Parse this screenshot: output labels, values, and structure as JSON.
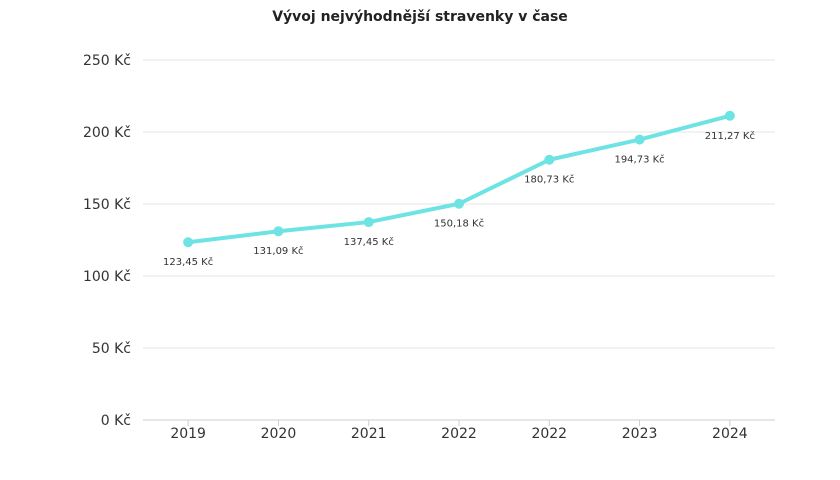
{
  "chart_data": {
    "type": "line",
    "title": "Vývoj nejvýhodnější stravenky v čase",
    "categories": [
      "2019",
      "2020",
      "2021",
      "2022",
      "2022",
      "2023",
      "2024"
    ],
    "series": [
      {
        "values": [
          123.45,
          131.09,
          137.45,
          150.18,
          180.73,
          194.73,
          211.27
        ],
        "data_labels": [
          "123,45 Kč",
          "131,09 Kč",
          "137,45 Kč",
          "150,18 Kč",
          "180,73 Kč",
          "194,73 Kč",
          "211,27 Kč"
        ],
        "color": "#6ee3e3"
      }
    ],
    "y_ticks": [
      "0 Kč",
      "50 Kč",
      "100 Kč",
      "150 Kč",
      "200 Kč",
      "250 Kč"
    ],
    "ylim": [
      0,
      250
    ],
    "xlabel": "",
    "ylabel": "",
    "grid": true,
    "legend": "none"
  }
}
